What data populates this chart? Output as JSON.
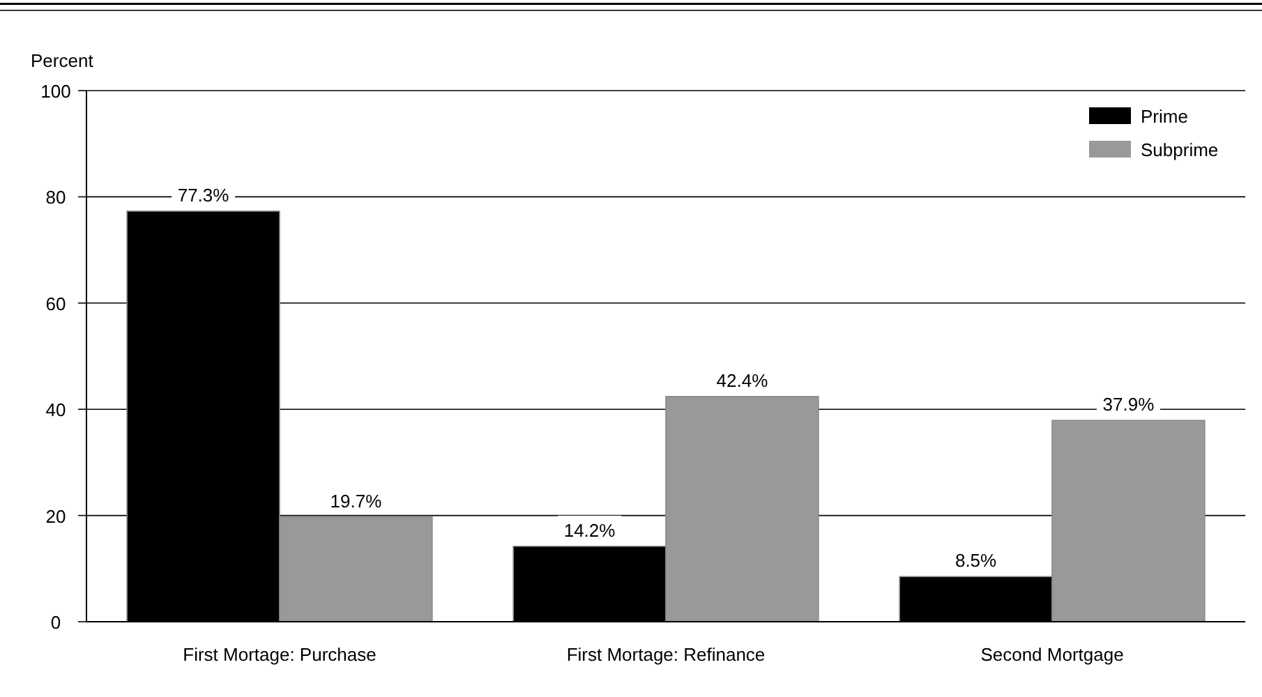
{
  "chart_data": {
    "type": "bar",
    "ylabel": "Percent",
    "categories": [
      "First Mortage: Purchase",
      "First Mortage: Refinance",
      "Second Mortgage"
    ],
    "series": [
      {
        "name": "Prime",
        "color": "#000000",
        "values": [
          77.3,
          14.2,
          8.5
        ],
        "value_labels": [
          "77.3%",
          "14.2%",
          "8.5%"
        ]
      },
      {
        "name": "Subprime",
        "color": "#999999",
        "values": [
          19.7,
          42.4,
          37.9
        ],
        "value_labels": [
          "19.7%",
          "42.4%",
          "37.9%"
        ]
      }
    ],
    "ylim": [
      0,
      100
    ],
    "yticks": [
      0,
      20,
      40,
      60,
      80,
      100
    ],
    "grid": "y",
    "legend": "top right"
  }
}
